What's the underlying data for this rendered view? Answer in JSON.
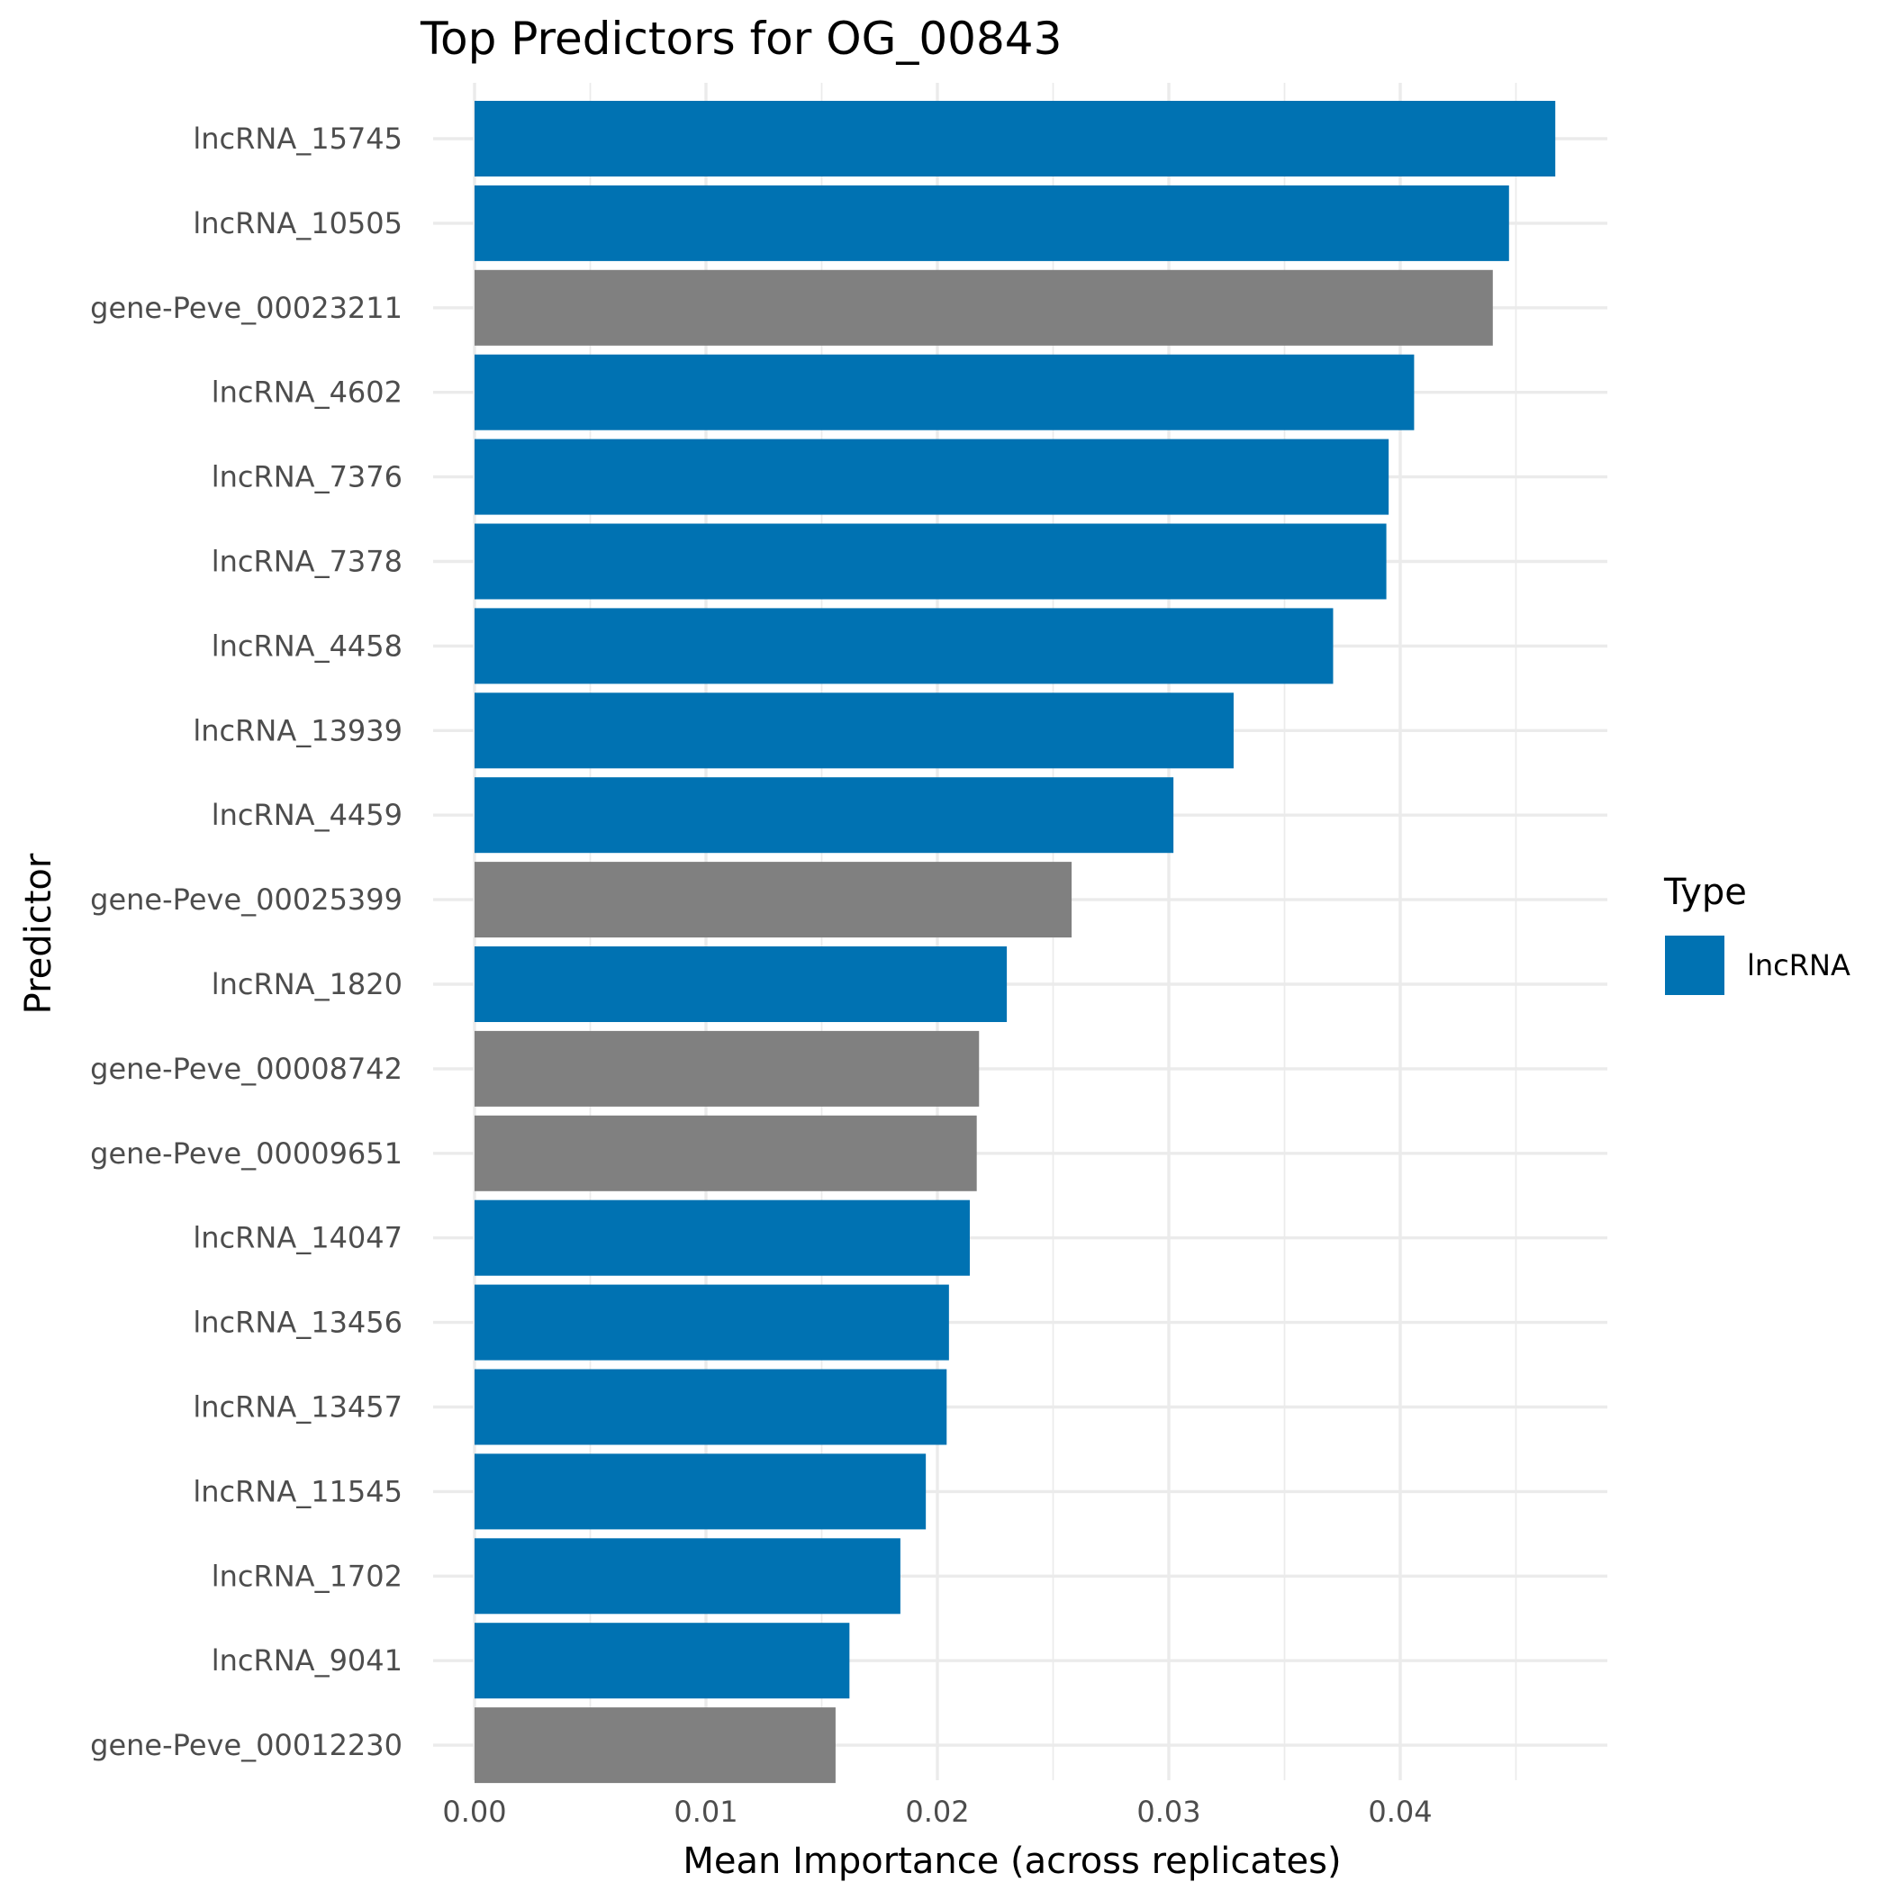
{
  "chart_data": {
    "type": "bar",
    "orientation": "horizontal",
    "title": "Top Predictors for OG_00843",
    "xlabel": "Mean Importance (across replicates)",
    "ylabel": "Predictor",
    "xlim": [
      0,
      0.049
    ],
    "xticks": [
      "0.00",
      "0.01",
      "0.02",
      "0.03",
      "0.04"
    ],
    "grid": true,
    "legend": {
      "title": "Type",
      "position": "right",
      "entries": [
        {
          "label": "lncRNA",
          "color": "#0072B2"
        }
      ]
    },
    "colors": {
      "lncRNA": "#0072B2",
      "gene": "#808080"
    },
    "categories": [
      "lncRNA_15745",
      "lncRNA_10505",
      "gene-Peve_00023211",
      "lncRNA_4602",
      "lncRNA_7376",
      "lncRNA_7378",
      "lncRNA_4458",
      "lncRNA_13939",
      "lncRNA_4459",
      "gene-Peve_00025399",
      "lncRNA_1820",
      "gene-Peve_00008742",
      "gene-Peve_00009651",
      "lncRNA_14047",
      "lncRNA_13456",
      "lncRNA_13457",
      "lncRNA_11545",
      "lncRNA_1702",
      "lncRNA_9041",
      "gene-Peve_00012230"
    ],
    "values": [
      0.0467,
      0.0447,
      0.044,
      0.0406,
      0.0395,
      0.0394,
      0.0371,
      0.0328,
      0.0302,
      0.0258,
      0.023,
      0.0218,
      0.0217,
      0.0214,
      0.0205,
      0.0204,
      0.0195,
      0.0184,
      0.0162,
      0.0156
    ],
    "types": [
      "lncRNA",
      "lncRNA",
      "gene",
      "lncRNA",
      "lncRNA",
      "lncRNA",
      "lncRNA",
      "lncRNA",
      "lncRNA",
      "gene",
      "lncRNA",
      "gene",
      "gene",
      "lncRNA",
      "lncRNA",
      "lncRNA",
      "lncRNA",
      "lncRNA",
      "lncRNA",
      "gene"
    ]
  }
}
